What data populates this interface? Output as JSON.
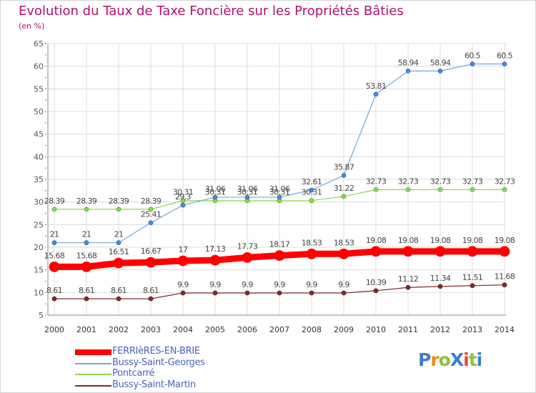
{
  "header": {
    "title": "Evolution du Taux de Taxe Foncière sur les Propriétés Bâties",
    "subtitle": "(en %)"
  },
  "logo": {
    "text": "ProXiti",
    "colors": [
      "#3a7fd0",
      "#e88b1a",
      "#8bc43c",
      "#3a7fd0",
      "#e4473a",
      "#8bc43c",
      "#3a7fd0"
    ]
  },
  "chart_data": {
    "type": "line",
    "title": "Evolution du Taux de Taxe Foncière sur les Propriétés Bâties",
    "subtitle": "(en %)",
    "categories": [
      "2000",
      "2001",
      "2002",
      "2003",
      "2004",
      "2005",
      "2006",
      "2007",
      "2008",
      "2009",
      "2010",
      "2011",
      "2012",
      "2013",
      "2014"
    ],
    "ylim": [
      5,
      65
    ],
    "yticks": [
      5,
      10,
      15,
      20,
      25,
      30,
      35,
      40,
      45,
      50,
      55,
      60,
      65
    ],
    "grid": true,
    "legend_position": "bottom-left",
    "series": [
      {
        "name": "FERRIèRES-EN-BRIE",
        "color": "#ff0000",
        "values": [
          15.68,
          15.68,
          16.51,
          16.67,
          17,
          17.13,
          17.73,
          18.17,
          18.53,
          18.53,
          19.08,
          19.08,
          19.08,
          19.08,
          19.08
        ],
        "labels": [
          "15.68",
          "15.68",
          "16.51",
          "16.67",
          "17",
          "17.13",
          "17.73",
          "18.17",
          "18.53",
          "18.53",
          "19.08",
          "19.08",
          "19.08",
          "19.08",
          "19.08"
        ]
      },
      {
        "name": "Bussy-Saint-Georges",
        "color": "#6fa8dc",
        "values": [
          21,
          21,
          21,
          25.41,
          29.3,
          31.06,
          31.06,
          31.06,
          32.61,
          35.87,
          53.81,
          58.94,
          58.94,
          60.5,
          60.5
        ],
        "labels": [
          "21",
          "21",
          "21",
          "25.41",
          "29.3",
          "31.06",
          "31.06",
          "31.06",
          "32.61",
          "35.87",
          "53.81",
          "58.94",
          "58.94",
          "60.5",
          "60.5"
        ]
      },
      {
        "name": "Pontcarré",
        "color": "#8fd45a",
        "values": [
          28.39,
          28.39,
          28.39,
          28.39,
          30.31,
          30.31,
          30.31,
          30.31,
          30.31,
          31.22,
          32.73,
          32.73,
          32.73,
          32.73,
          32.73
        ],
        "labels": [
          "28.39",
          "28.39",
          "28.39",
          "28.39",
          "30.31",
          "30.31",
          "30.31",
          "30.31",
          "30.31",
          "31.22",
          "32.73",
          "32.73",
          "32.73",
          "32.73",
          "32.73"
        ]
      },
      {
        "name": "Bussy-Saint-Martin",
        "color": "#7b2e2e",
        "values": [
          8.61,
          8.61,
          8.61,
          8.61,
          9.9,
          9.9,
          9.9,
          9.9,
          9.9,
          9.9,
          10.39,
          11.12,
          11.34,
          11.51,
          11.68
        ],
        "labels": [
          "8.61",
          "8.61",
          "8.61",
          "8.61",
          "9.9",
          "9.9",
          "9.9",
          "9.9",
          "9.9",
          "9.9",
          "10.39",
          "11.12",
          "11.34",
          "11.51",
          "11.68"
        ]
      }
    ]
  }
}
